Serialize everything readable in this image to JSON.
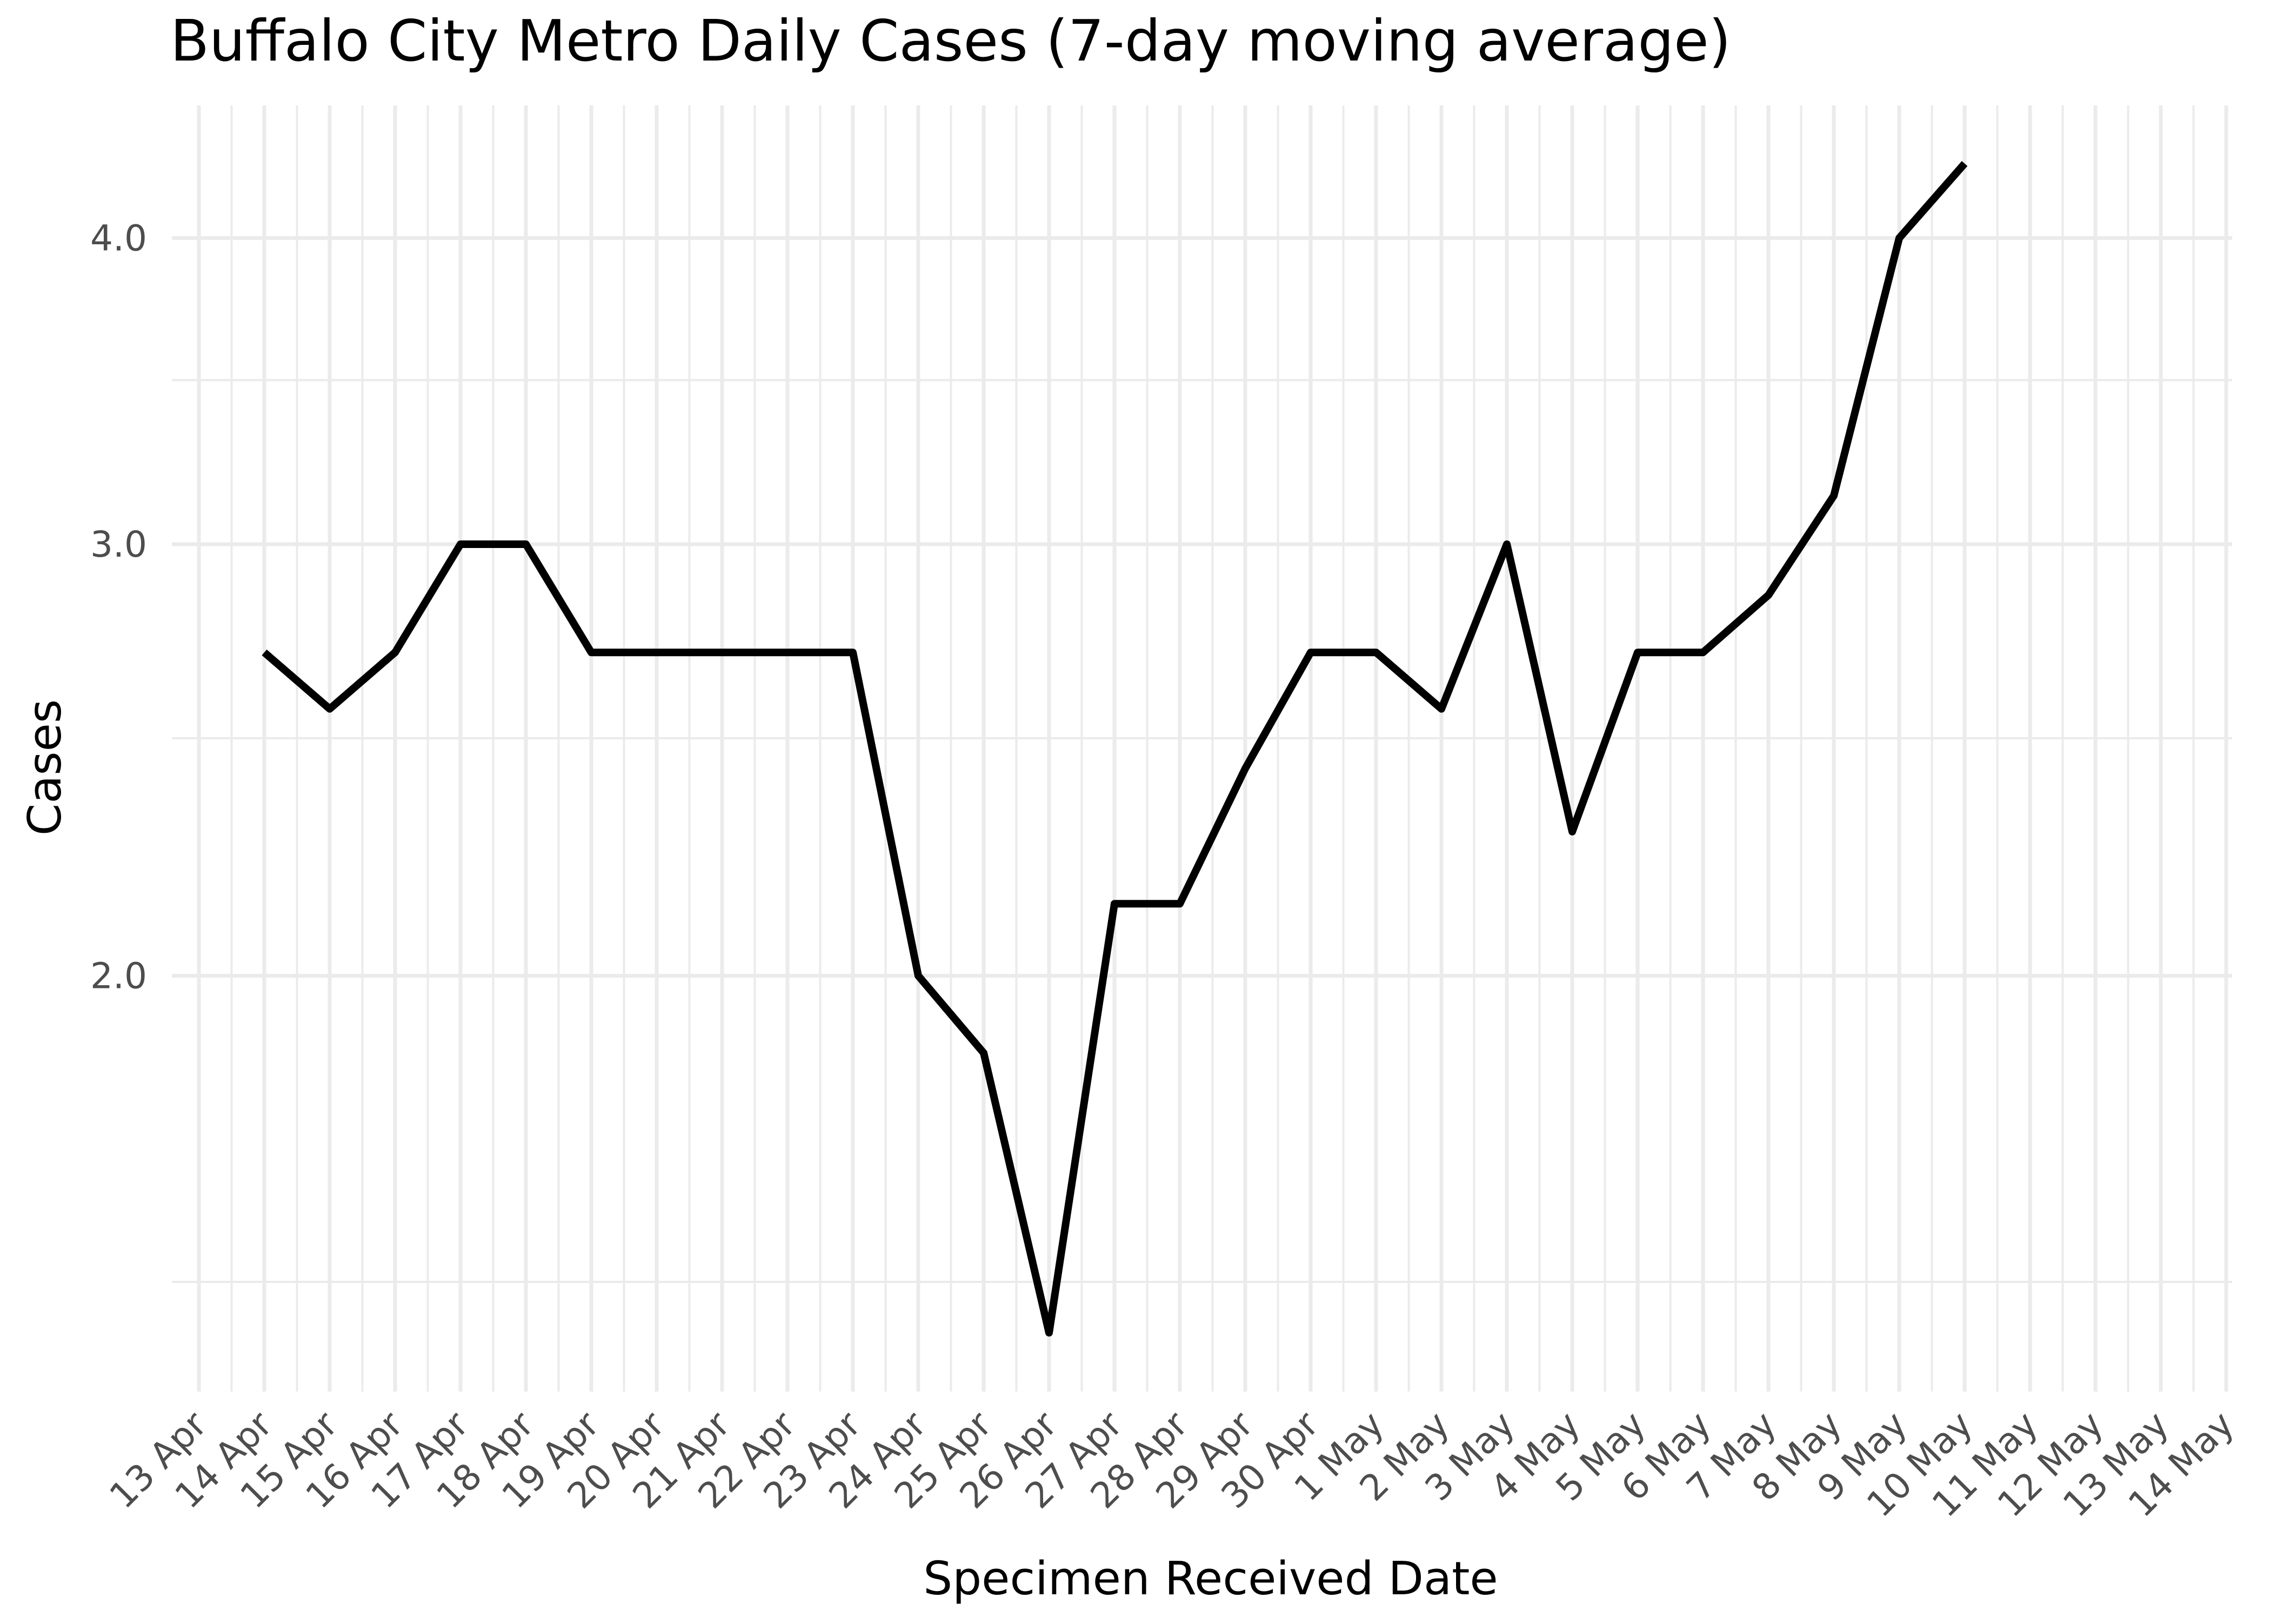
{
  "chart_data": {
    "type": "line",
    "title": "Buffalo City Metro Daily Cases (7-day moving average)",
    "xlabel": "Specimen Received Date",
    "ylabel": "Cases",
    "x_ticks": [
      "13 Apr",
      "14 Apr",
      "15 Apr",
      "16 Apr",
      "17 Apr",
      "18 Apr",
      "19 Apr",
      "20 Apr",
      "21 Apr",
      "22 Apr",
      "23 Apr",
      "24 Apr",
      "25 Apr",
      "26 Apr",
      "27 Apr",
      "28 Apr",
      "29 Apr",
      "30 Apr",
      "1 May",
      "2 May",
      "3 May",
      "4 May",
      "5 May",
      "6 May",
      "7 May",
      "8 May",
      "9 May",
      "10 May",
      "11 May",
      "12 May",
      "13 May",
      "14 May"
    ],
    "y_ticks": [
      2.0,
      3.0,
      4.0
    ],
    "y_tick_labels": [
      "2.0",
      "3.0",
      "4.0"
    ],
    "y_minor_ticks": [
      1.5,
      2.5,
      3.5
    ],
    "y_scale": "log",
    "ylim": [
      1.3,
      4.6
    ],
    "grid": true,
    "series": [
      {
        "values": [
          {
            "x": "14 Apr",
            "y": 2.71
          },
          {
            "x": "15 Apr",
            "y": 2.57
          },
          {
            "x": "16 Apr",
            "y": 2.71
          },
          {
            "x": "17 Apr",
            "y": 3.0
          },
          {
            "x": "18 Apr",
            "y": 3.0
          },
          {
            "x": "19 Apr",
            "y": 2.71
          },
          {
            "x": "20 Apr",
            "y": 2.71
          },
          {
            "x": "21 Apr",
            "y": 2.71
          },
          {
            "x": "22 Apr",
            "y": 2.71
          },
          {
            "x": "23 Apr",
            "y": 2.71
          },
          {
            "x": "24 Apr",
            "y": 2.0
          },
          {
            "x": "25 Apr",
            "y": 1.86
          },
          {
            "x": "26 Apr",
            "y": 1.43
          },
          {
            "x": "27 Apr",
            "y": 2.14
          },
          {
            "x": "28 Apr",
            "y": 2.14
          },
          {
            "x": "29 Apr",
            "y": 2.43
          },
          {
            "x": "30 Apr",
            "y": 2.71
          },
          {
            "x": "1 May",
            "y": 2.71
          },
          {
            "x": "2 May",
            "y": 2.57
          },
          {
            "x": "3 May",
            "y": 3.0
          },
          {
            "x": "4 May",
            "y": 2.29
          },
          {
            "x": "5 May",
            "y": 2.71
          },
          {
            "x": "6 May",
            "y": 2.71
          },
          {
            "x": "7 May",
            "y": 2.86
          },
          {
            "x": "8 May",
            "y": 3.14
          },
          {
            "x": "9 May",
            "y": 4.0
          },
          {
            "x": "10 May",
            "y": 4.29
          }
        ]
      }
    ]
  }
}
